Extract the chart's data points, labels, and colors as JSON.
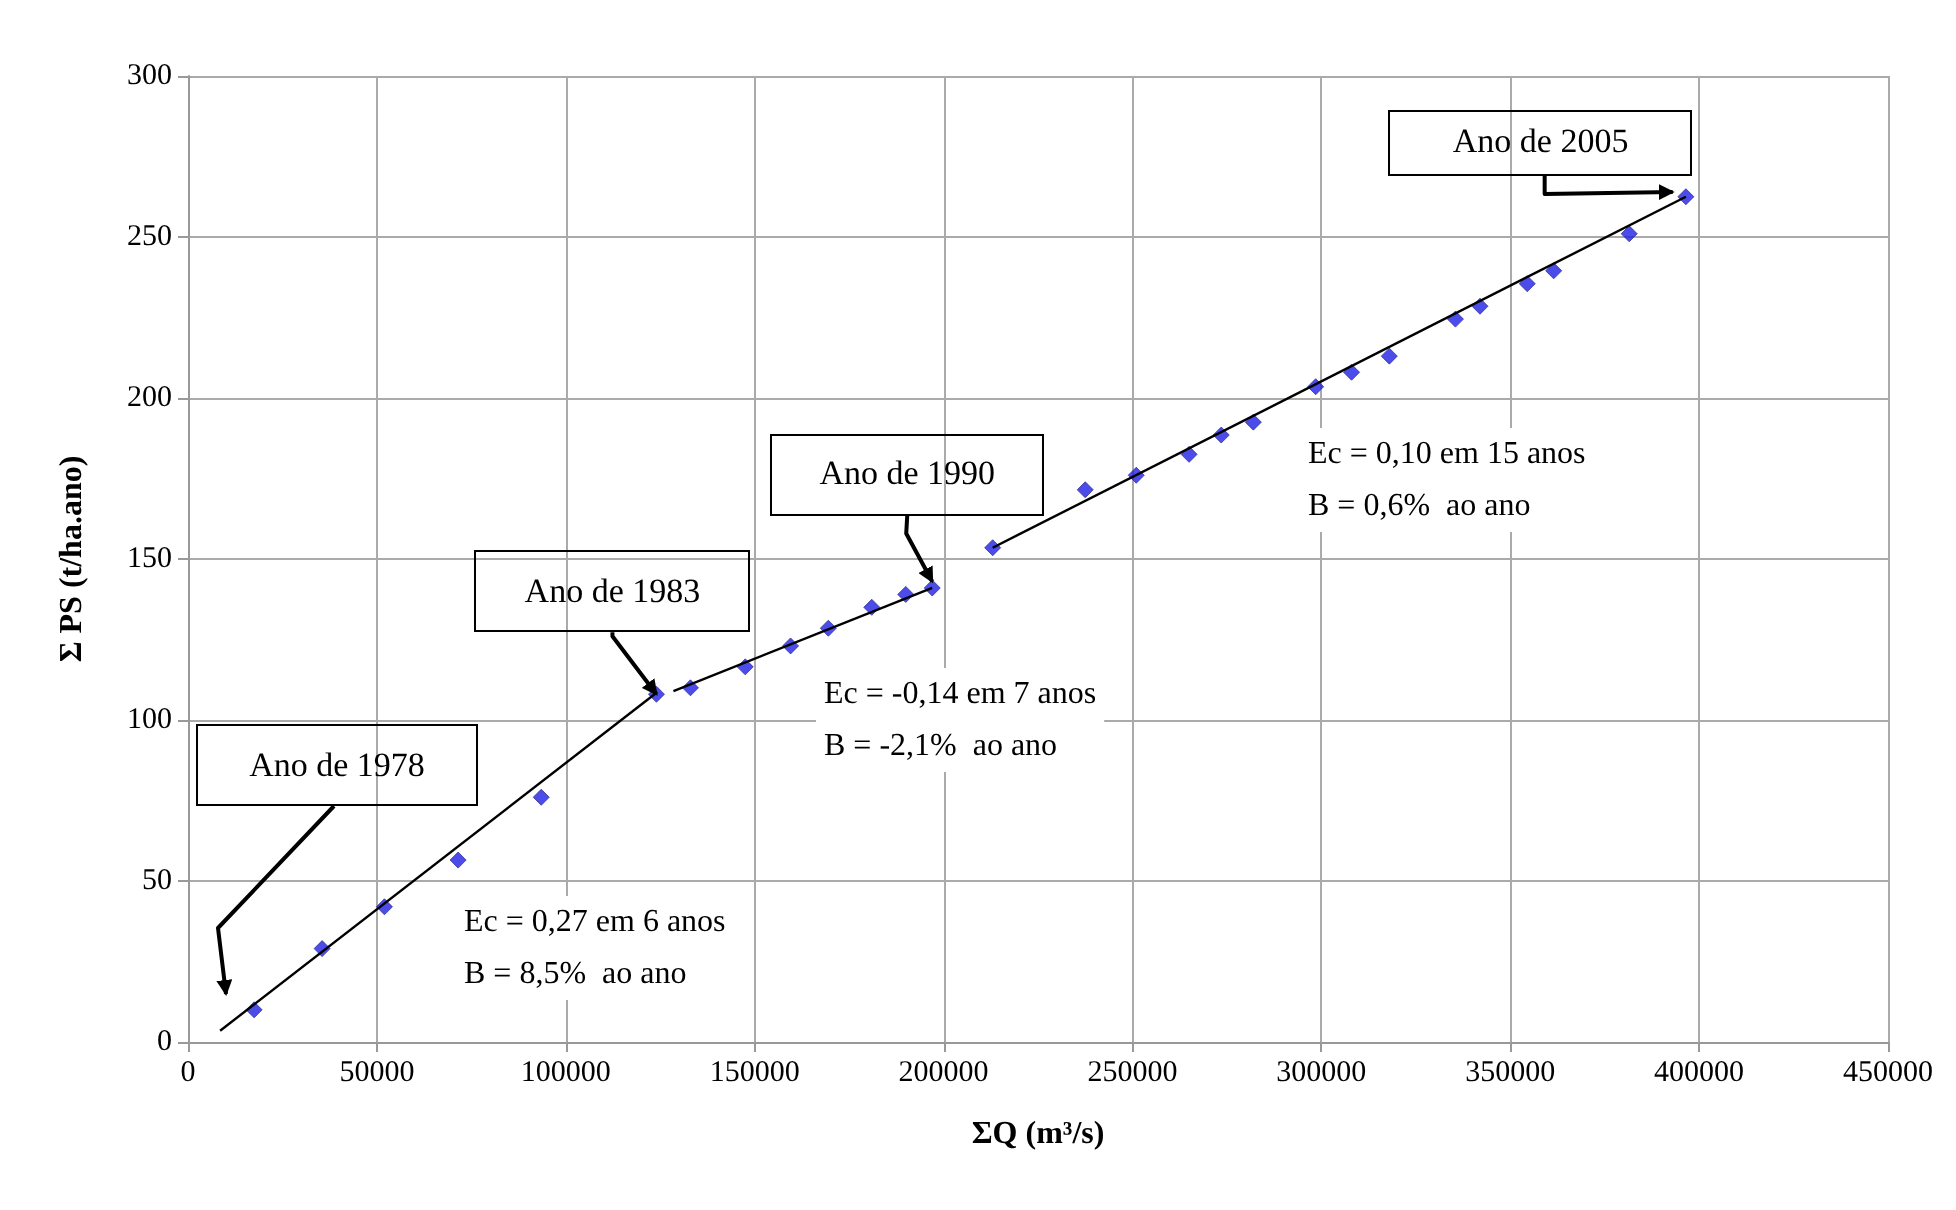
{
  "chart_data": {
    "type": "scatter",
    "xlabel": "ΣQ (m³/s)",
    "ylabel": "Σ PS (t/ha.ano)",
    "xlim": [
      0,
      450000
    ],
    "xticks": [
      0,
      50000,
      100000,
      150000,
      200000,
      250000,
      300000,
      350000,
      400000,
      450000
    ],
    "ylim": [
      0,
      300
    ],
    "yticks": [
      0,
      50,
      100,
      150,
      200,
      250,
      300
    ],
    "grid": true,
    "series": [
      {
        "marker": "diamond",
        "color": "#1f1fe6",
        "x": [
          17500,
          35500,
          52000,
          71500,
          93500,
          124000,
          133000,
          147500,
          159500,
          169500,
          181000,
          190000,
          197000,
          213000,
          237500,
          251000,
          265000,
          273500,
          282000,
          298500,
          308000,
          318000,
          335500,
          342000,
          354500,
          361500,
          381500,
          396500
        ],
        "values": [
          10,
          29,
          42,
          56.5,
          76,
          108,
          110,
          116.5,
          123,
          128.5,
          135,
          139,
          141,
          153.5,
          171.5,
          176,
          182.5,
          188.5,
          192.5,
          203.5,
          208,
          213,
          224.5,
          228.5,
          235.5,
          239.5,
          251,
          262.5
        ]
      },
      {
        "type": "line",
        "marker": "none",
        "color": "#000000",
        "x": [
          8500,
          123500
        ],
        "values": [
          3.5,
          108
        ]
      },
      {
        "type": "line",
        "marker": "none",
        "color": "#000000",
        "x": [
          128500,
          197000
        ],
        "values": [
          109,
          141
        ]
      },
      {
        "type": "line",
        "marker": "none",
        "color": "#000000",
        "x": [
          213000,
          396500
        ],
        "values": [
          153.5,
          262.5
        ]
      }
    ],
    "annotations": [
      "Ano de 1978",
      {
        "text": "Ano de 1983",
        "x": 124000,
        "y": 108
      },
      {
        "text": "Ano de 1990",
        "x": 197000,
        "y": 143
      },
      {
        "text": "Ano de 2005",
        "x": 393000,
        "y": 264
      },
      "Ec = 0,27 em 6 anos\nB = 8,5%  ao ano",
      "Ec = -0,14 em 7 anos\nB = -2,1%  ao ano",
      "Ec = 0,10 em 15 anos\nB = 0,6%  ao ano"
    ]
  }
}
